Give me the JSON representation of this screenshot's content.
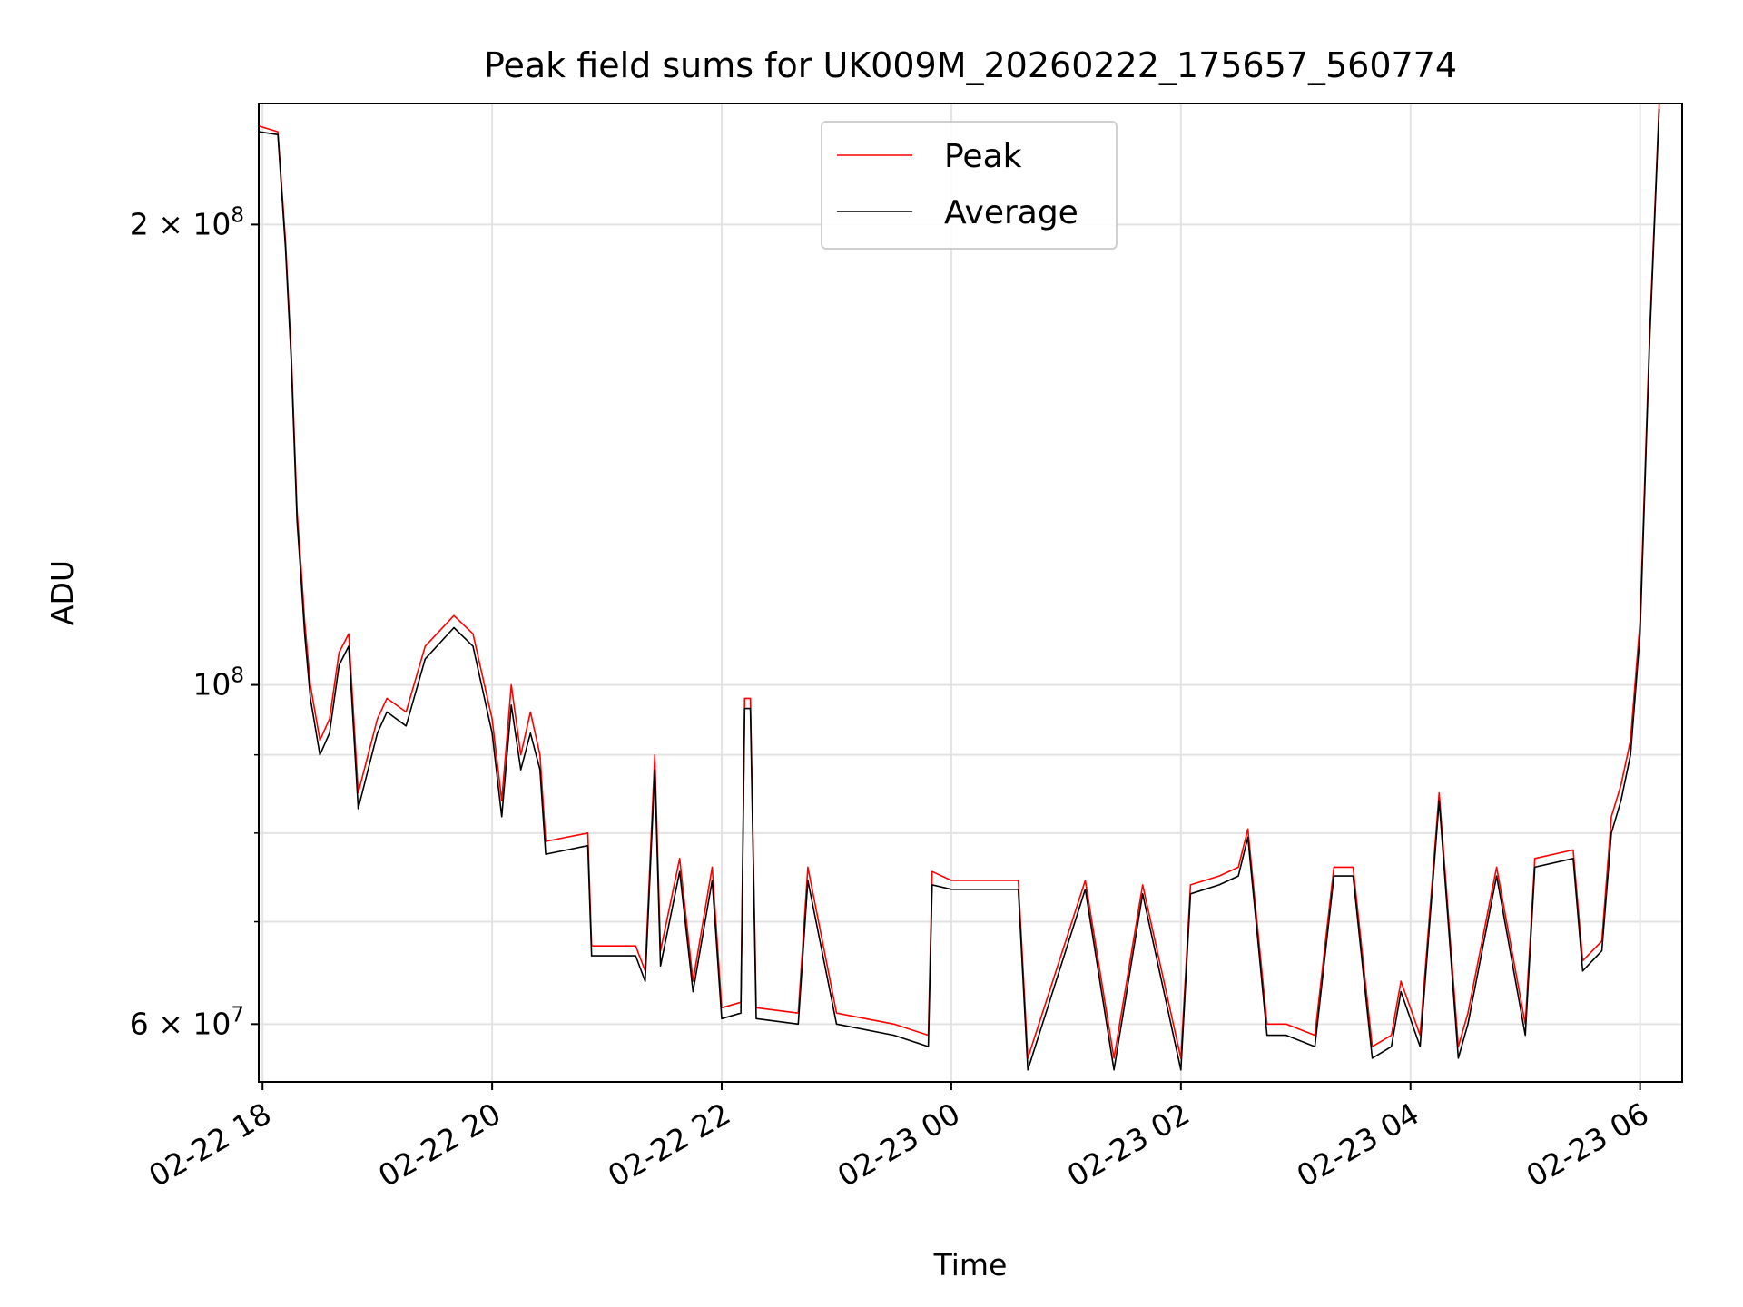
{
  "chart_data": {
    "type": "line",
    "title": "Peak field sums for UK009M_20260222_175657_560774",
    "xlabel": "Time",
    "ylabel": "ADU",
    "yscale": "log",
    "ylim": [
      55000000,
      240000000
    ],
    "xlim": [
      "2026-02-22 17:58",
      "2026-02-23 06:22"
    ],
    "grid": true,
    "legend_position": "top-center",
    "colors": {
      "Peak": "#ff0000",
      "Average": "#000000"
    },
    "xticks": [
      {
        "value": "2026-02-22 18:00",
        "label": "02-22 18"
      },
      {
        "value": "2026-02-22 20:00",
        "label": "02-22 20"
      },
      {
        "value": "2026-02-22 22:00",
        "label": "02-22 22"
      },
      {
        "value": "2026-02-23 00:00",
        "label": "02-23 00"
      },
      {
        "value": "2026-02-23 02:00",
        "label": "02-23 02"
      },
      {
        "value": "2026-02-23 04:00",
        "label": "02-23 04"
      },
      {
        "value": "2026-02-23 06:00",
        "label": "02-23 06"
      }
    ],
    "yticks": [
      {
        "value": 200000000,
        "base": "2 × 10",
        "exp": "8"
      },
      {
        "value": 100000000,
        "base": "10",
        "exp": "8"
      },
      {
        "value": 60000000,
        "base": "6 × 10",
        "exp": "7"
      }
    ],
    "yminor": [
      70000000,
      80000000,
      90000000
    ],
    "series": [
      {
        "name": "Peak",
        "x": [
          "2026-02-22 17:58",
          "2026-02-22 18:08",
          "2026-02-22 18:12",
          "2026-02-22 18:15",
          "2026-02-22 18:18",
          "2026-02-22 18:20",
          "2026-02-22 18:22",
          "2026-02-22 18:25",
          "2026-02-22 18:30",
          "2026-02-22 18:35",
          "2026-02-22 18:40",
          "2026-02-22 18:45",
          "2026-02-22 18:50",
          "2026-02-22 19:00",
          "2026-02-22 19:05",
          "2026-02-22 19:15",
          "2026-02-22 19:25",
          "2026-02-22 19:40",
          "2026-02-22 19:50",
          "2026-02-22 20:00",
          "2026-02-22 20:05",
          "2026-02-22 20:10",
          "2026-02-22 20:15",
          "2026-02-22 20:20",
          "2026-02-22 20:25",
          "2026-02-22 20:28",
          "2026-02-22 20:50",
          "2026-02-22 20:52",
          "2026-02-22 21:15",
          "2026-02-22 21:20",
          "2026-02-22 21:25",
          "2026-02-22 21:28",
          "2026-02-22 21:38",
          "2026-02-22 21:45",
          "2026-02-22 21:55",
          "2026-02-22 22:00",
          "2026-02-22 22:10",
          "2026-02-22 22:12",
          "2026-02-22 22:15",
          "2026-02-22 22:18",
          "2026-02-22 22:40",
          "2026-02-22 22:45",
          "2026-02-22 23:00",
          "2026-02-22 23:30",
          "2026-02-22 23:48",
          "2026-02-22 23:50",
          "2026-02-23 00:00",
          "2026-02-23 00:03",
          "2026-02-23 00:35",
          "2026-02-23 00:40",
          "2026-02-23 01:10",
          "2026-02-23 01:25",
          "2026-02-23 01:40",
          "2026-02-23 02:00",
          "2026-02-23 02:05",
          "2026-02-23 02:20",
          "2026-02-23 02:30",
          "2026-02-23 02:35",
          "2026-02-23 02:45",
          "2026-02-23 02:55",
          "2026-02-23 03:10",
          "2026-02-23 03:20",
          "2026-02-23 03:30",
          "2026-02-23 03:40",
          "2026-02-23 03:50",
          "2026-02-23 03:55",
          "2026-02-23 04:05",
          "2026-02-23 04:15",
          "2026-02-23 04:25",
          "2026-02-23 04:30",
          "2026-02-23 04:45",
          "2026-02-23 05:00",
          "2026-02-23 05:05",
          "2026-02-23 05:25",
          "2026-02-23 05:30",
          "2026-02-23 05:40",
          "2026-02-23 05:45",
          "2026-02-23 05:50",
          "2026-02-23 05:55",
          "2026-02-23 06:00",
          "2026-02-23 06:05",
          "2026-02-23 06:10"
        ],
        "y": [
          232000000,
          230000000,
          195000000,
          165000000,
          130000000,
          120000000,
          110000000,
          100000000,
          92000000,
          95000000,
          105000000,
          108000000,
          85000000,
          95000000,
          98000000,
          96000000,
          106000000,
          111000000,
          108000000,
          95000000,
          84000000,
          100000000,
          90000000,
          96000000,
          90000000,
          79000000,
          80000000,
          67500000,
          67500000,
          65000000,
          90000000,
          67000000,
          77000000,
          64000000,
          76000000,
          61500000,
          62000000,
          98000000,
          98000000,
          61500000,
          61000000,
          76000000,
          61000000,
          60000000,
          59000000,
          75500000,
          74500000,
          74500000,
          74500000,
          57000000,
          74500000,
          57000000,
          74000000,
          57000000,
          74000000,
          75000000,
          76000000,
          80500000,
          60000000,
          60000000,
          59000000,
          76000000,
          76000000,
          58000000,
          59000000,
          64000000,
          59000000,
          85000000,
          58000000,
          61000000,
          76000000,
          60000000,
          77000000,
          78000000,
          66000000,
          68000000,
          82000000,
          86000000,
          92000000,
          110000000,
          170000000,
          240000000
        ]
      },
      {
        "name": "Average",
        "x": [
          "2026-02-22 17:58",
          "2026-02-22 18:08",
          "2026-02-22 18:12",
          "2026-02-22 18:15",
          "2026-02-22 18:18",
          "2026-02-22 18:20",
          "2026-02-22 18:22",
          "2026-02-22 18:25",
          "2026-02-22 18:30",
          "2026-02-22 18:35",
          "2026-02-22 18:40",
          "2026-02-22 18:45",
          "2026-02-22 18:50",
          "2026-02-22 19:00",
          "2026-02-22 19:05",
          "2026-02-22 19:15",
          "2026-02-22 19:25",
          "2026-02-22 19:40",
          "2026-02-22 19:50",
          "2026-02-22 20:00",
          "2026-02-22 20:05",
          "2026-02-22 20:10",
          "2026-02-22 20:15",
          "2026-02-22 20:20",
          "2026-02-22 20:25",
          "2026-02-22 20:28",
          "2026-02-22 20:50",
          "2026-02-22 20:52",
          "2026-02-22 21:15",
          "2026-02-22 21:20",
          "2026-02-22 21:25",
          "2026-02-22 21:28",
          "2026-02-22 21:38",
          "2026-02-22 21:45",
          "2026-02-22 21:55",
          "2026-02-22 22:00",
          "2026-02-22 22:10",
          "2026-02-22 22:12",
          "2026-02-22 22:15",
          "2026-02-22 22:18",
          "2026-02-22 22:40",
          "2026-02-22 22:45",
          "2026-02-22 23:00",
          "2026-02-22 23:30",
          "2026-02-22 23:48",
          "2026-02-22 23:50",
          "2026-02-23 00:00",
          "2026-02-23 00:03",
          "2026-02-23 00:35",
          "2026-02-23 00:40",
          "2026-02-23 01:10",
          "2026-02-23 01:25",
          "2026-02-23 01:40",
          "2026-02-23 02:00",
          "2026-02-23 02:05",
          "2026-02-23 02:20",
          "2026-02-23 02:30",
          "2026-02-23 02:35",
          "2026-02-23 02:45",
          "2026-02-23 02:55",
          "2026-02-23 03:10",
          "2026-02-23 03:20",
          "2026-02-23 03:30",
          "2026-02-23 03:40",
          "2026-02-23 03:50",
          "2026-02-23 03:55",
          "2026-02-23 04:05",
          "2026-02-23 04:15",
          "2026-02-23 04:25",
          "2026-02-23 04:30",
          "2026-02-23 04:45",
          "2026-02-23 05:00",
          "2026-02-23 05:05",
          "2026-02-23 05:25",
          "2026-02-23 05:30",
          "2026-02-23 05:40",
          "2026-02-23 05:45",
          "2026-02-23 05:50",
          "2026-02-23 05:55",
          "2026-02-23 06:00",
          "2026-02-23 06:05",
          "2026-02-23 06:10"
        ],
        "y": [
          230000000,
          229000000,
          193000000,
          163000000,
          128000000,
          118000000,
          108000000,
          98000000,
          90000000,
          93000000,
          103000000,
          106000000,
          83000000,
          93000000,
          96000000,
          94000000,
          104000000,
          109000000,
          106000000,
          93000000,
          82000000,
          97000000,
          88000000,
          93000000,
          88000000,
          77500000,
          78500000,
          66500000,
          66500000,
          64000000,
          88000000,
          65500000,
          75500000,
          63000000,
          74500000,
          60500000,
          61000000,
          96500000,
          96500000,
          60500000,
          60000000,
          74500000,
          60000000,
          59000000,
          58000000,
          74000000,
          73500000,
          73500000,
          73500000,
          56000000,
          73500000,
          56000000,
          73000000,
          56000000,
          73000000,
          74000000,
          75000000,
          79500000,
          59000000,
          59000000,
          58000000,
          75000000,
          75000000,
          57000000,
          58000000,
          63000000,
          58000000,
          84000000,
          57000000,
          60000000,
          75000000,
          59000000,
          76000000,
          77000000,
          65000000,
          67000000,
          80000000,
          84000000,
          90000000,
          108000000,
          168000000,
          238000000
        ]
      }
    ]
  }
}
